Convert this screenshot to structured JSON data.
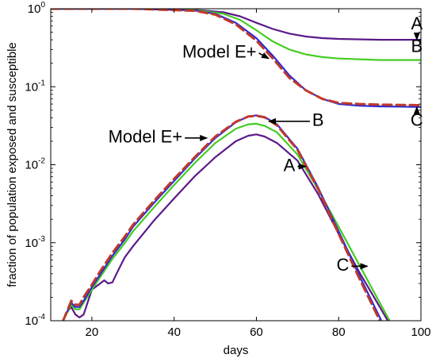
{
  "chart_data": {
    "type": "line",
    "xlabel": "days",
    "ylabel": "fraction of population exposed and susceptible",
    "xlim": [
      10,
      100
    ],
    "ylim": [
      0.0001,
      1
    ],
    "yscale": "log",
    "grid": false,
    "x_ticks": [
      20,
      40,
      60,
      80,
      100
    ],
    "x_tick_labels": [
      "20",
      "40",
      "60",
      "80",
      "100"
    ],
    "y_ticks": [
      0.0001,
      0.001,
      0.01,
      0.1,
      1
    ],
    "y_tick_labels": [
      {
        "base": "10",
        "exp": "-4"
      },
      {
        "base": "10",
        "exp": "-3"
      },
      {
        "base": "10",
        "exp": "-2"
      },
      {
        "base": "10",
        "exp": "-1"
      },
      {
        "base": "10",
        "exp": "0"
      }
    ],
    "series": [
      {
        "name": "A",
        "group": "susceptible",
        "color": "#5b1a8a",
        "style": "solid",
        "x": [
          10,
          30,
          45,
          52,
          56,
          60,
          64,
          68,
          72,
          76,
          80,
          90,
          100
        ],
        "y": [
          1,
          1,
          0.97,
          0.9,
          0.8,
          0.66,
          0.55,
          0.48,
          0.44,
          0.42,
          0.41,
          0.4,
          0.4
        ]
      },
      {
        "name": "B",
        "group": "susceptible",
        "color": "#44cc22",
        "style": "solid",
        "x": [
          10,
          30,
          45,
          52,
          56,
          60,
          64,
          68,
          72,
          76,
          80,
          90,
          100
        ],
        "y": [
          1,
          1,
          0.96,
          0.86,
          0.72,
          0.53,
          0.38,
          0.3,
          0.26,
          0.24,
          0.23,
          0.22,
          0.22
        ]
      },
      {
        "name": "C",
        "group": "susceptible",
        "color": "#2a2ad8",
        "style": "solid",
        "x": [
          10,
          30,
          45,
          50,
          55,
          60,
          64,
          68,
          72,
          76,
          80,
          85,
          90,
          100
        ],
        "y": [
          1,
          1,
          0.95,
          0.86,
          0.66,
          0.42,
          0.25,
          0.14,
          0.09,
          0.07,
          0.06,
          0.057,
          0.056,
          0.055
        ]
      },
      {
        "name": "Model E+",
        "group": "susceptible",
        "color": "#c0392b",
        "style": "dashed",
        "x": [
          10,
          30,
          45,
          50,
          55,
          60,
          64,
          68,
          72,
          76,
          80,
          85,
          90,
          100
        ],
        "y": [
          1,
          1,
          0.94,
          0.84,
          0.63,
          0.39,
          0.23,
          0.13,
          0.09,
          0.07,
          0.062,
          0.06,
          0.059,
          0.058
        ]
      },
      {
        "name": "A",
        "group": "exposed",
        "color": "#5b1a8a",
        "style": "solid",
        "x": [
          13,
          14,
          15,
          16,
          17,
          18,
          20,
          22,
          23,
          24,
          25,
          26,
          28,
          30,
          35,
          40,
          45,
          50,
          55,
          58,
          60,
          62,
          65,
          70,
          75,
          80,
          85,
          90,
          93
        ],
        "y": [
          0.0001,
          0.00013,
          0.00015,
          0.00012,
          0.00011,
          0.00012,
          0.00025,
          0.0003,
          0.00033,
          0.0003,
          0.00031,
          0.0004,
          0.00065,
          0.0009,
          0.0019,
          0.0037,
          0.0071,
          0.0125,
          0.02,
          0.0235,
          0.0245,
          0.023,
          0.019,
          0.0113,
          0.0042,
          0.0013,
          0.00042,
          0.00015,
          8e-05
        ]
      },
      {
        "name": "B",
        "group": "exposed",
        "color": "#44cc22",
        "style": "solid",
        "x": [
          13,
          15,
          16,
          17,
          18,
          20,
          22,
          25,
          28,
          30,
          35,
          40,
          45,
          50,
          55,
          58,
          60,
          62,
          65,
          70,
          75,
          80,
          85,
          90,
          94
        ],
        "y": [
          0.0001,
          0.00016,
          0.00014,
          0.00014,
          0.00017,
          0.00025,
          0.00036,
          0.00062,
          0.00099,
          0.0014,
          0.0028,
          0.0055,
          0.0105,
          0.019,
          0.029,
          0.033,
          0.0335,
          0.0315,
          0.026,
          0.0135,
          0.0048,
          0.0016,
          0.00052,
          0.00017,
          7e-05
        ]
      },
      {
        "name": "C",
        "group": "exposed",
        "color": "#2a2ad8",
        "style": "solid",
        "x": [
          13,
          15,
          16,
          17,
          18,
          20,
          22,
          25,
          28,
          30,
          35,
          40,
          45,
          50,
          55,
          58,
          60,
          62,
          65,
          70,
          75,
          80,
          85,
          90,
          93
        ],
        "y": [
          0.0001,
          0.00017,
          0.00015,
          0.00015,
          0.00018,
          0.00027,
          0.00039,
          0.00068,
          0.0011,
          0.0016,
          0.0032,
          0.0062,
          0.012,
          0.022,
          0.035,
          0.0415,
          0.043,
          0.041,
          0.033,
          0.016,
          0.0051,
          0.0014,
          0.00038,
          0.00011,
          5e-05
        ]
      },
      {
        "name": "Model E+",
        "group": "exposed",
        "color": "#c0392b",
        "style": "dashed",
        "x": [
          13,
          15,
          16,
          17,
          18,
          20,
          22,
          25,
          28,
          30,
          35,
          40,
          45,
          50,
          55,
          58,
          60,
          62,
          65,
          70,
          75,
          80,
          85,
          90,
          93
        ],
        "y": [
          0.0001,
          0.00018,
          0.00016,
          0.00016,
          0.0002,
          0.00029,
          0.00043,
          0.00074,
          0.0012,
          0.0017,
          0.0034,
          0.0066,
          0.0125,
          0.023,
          0.0355,
          0.0415,
          0.0425,
          0.0405,
          0.032,
          0.0155,
          0.0049,
          0.0013,
          0.00035,
          0.0001,
          5e-05
        ]
      }
    ],
    "annotations": [
      {
        "text": "A",
        "label_pos": [
          99,
          0.62
        ],
        "target": [
          99,
          0.4
        ]
      },
      {
        "text": "B",
        "label_pos": [
          99,
          0.32
        ],
        "target": [
          99,
          0.22
        ]
      },
      {
        "text": "C",
        "label_pos": [
          99,
          0.036
        ],
        "target": [
          99,
          0.055
        ]
      },
      {
        "text": "Model E+",
        "label_pos": [
          51,
          0.27
        ],
        "target": [
          63,
          0.23
        ]
      },
      {
        "text": "B",
        "label_pos": [
          75,
          0.036
        ],
        "target": [
          63,
          0.036
        ]
      },
      {
        "text": "Model E+",
        "label_pos": [
          33,
          0.022
        ],
        "target": [
          48,
          0.022
        ]
      },
      {
        "text": "A",
        "label_pos": [
          68,
          0.0095
        ],
        "target": [
          72,
          0.0095
        ]
      },
      {
        "text": "C",
        "label_pos": [
          81,
          0.0005
        ],
        "target": [
          87,
          0.0005
        ]
      }
    ]
  }
}
